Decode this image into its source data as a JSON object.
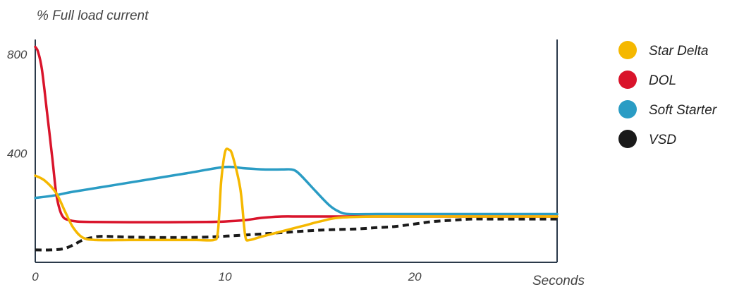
{
  "chart_data": {
    "type": "line",
    "title": "",
    "ylabel": "% Full load current",
    "xlabel": "Seconds",
    "xlim": [
      0,
      27.5
    ],
    "ylim": [
      0,
      900
    ],
    "x_ticks": [
      0,
      10,
      20
    ],
    "y_ticks": [
      400,
      800
    ],
    "grid": false,
    "legend_placement": "right",
    "colors": {
      "star_delta": "#f5b800",
      "dol": "#d9142b",
      "soft_starter": "#2a9cc4",
      "vsd": "#1a1a1a",
      "axis": "#2b3a4a"
    },
    "series": [
      {
        "name": "Star Delta",
        "key": "star_delta",
        "style": "solid",
        "x": [
          0,
          0.5,
          1.1,
          1.6,
          2.0,
          2.5,
          3.2,
          5,
          7,
          8.5,
          9.4,
          9.6,
          9.7,
          9.8,
          10.0,
          10.2,
          10.4,
          10.8,
          11.0,
          11.1,
          11.3,
          12,
          14,
          15,
          16,
          18,
          20,
          22,
          24,
          26,
          27.5
        ],
        "y": [
          350,
          330,
          280,
          200,
          140,
          100,
          90,
          90,
          90,
          90,
          90,
          110,
          200,
          330,
          445,
          455,
          430,
          300,
          150,
          95,
          90,
          105,
          145,
          165,
          180,
          185,
          185,
          185,
          185,
          185,
          185
        ]
      },
      {
        "name": "DOL",
        "key": "dol",
        "style": "solid",
        "x": [
          0,
          0.15,
          0.35,
          0.6,
          0.9,
          1.1,
          1.3,
          1.5,
          1.8,
          2.2,
          3,
          5,
          7,
          9,
          10,
          11,
          12,
          13,
          14,
          16,
          18,
          20,
          22,
          24,
          26,
          27.5
        ],
        "y": [
          870,
          850,
          780,
          620,
          420,
          280,
          210,
          180,
          170,
          165,
          163,
          162,
          162,
          163,
          165,
          170,
          180,
          185,
          185,
          185,
          185,
          185,
          185,
          185,
          185,
          185
        ]
      },
      {
        "name": "Soft Starter",
        "key": "soft_starter",
        "style": "solid",
        "x": [
          0,
          1,
          2,
          4,
          6,
          8,
          10,
          11,
          12,
          13,
          13.5,
          13.8,
          14.2,
          14.8,
          15.5,
          16,
          16.5,
          18,
          20,
          22,
          24,
          26,
          27.5
        ],
        "y": [
          260,
          270,
          285,
          310,
          335,
          360,
          385,
          380,
          375,
          375,
          375,
          365,
          335,
          285,
          230,
          205,
          195,
          195,
          195,
          195,
          195,
          195,
          195
        ]
      },
      {
        "name": "VSD",
        "key": "vsd",
        "style": "dashed",
        "x": [
          0,
          0.8,
          1.5,
          2.0,
          2.5,
          3.0,
          3.5,
          5,
          7,
          9,
          11,
          13,
          15,
          17,
          18,
          19,
          20,
          21,
          22,
          23,
          24,
          25,
          26,
          27.5
        ],
        "y": [
          50,
          50,
          55,
          70,
          90,
          100,
          105,
          102,
          100,
          102,
          110,
          120,
          130,
          135,
          140,
          145,
          155,
          165,
          170,
          175,
          175,
          175,
          175,
          175
        ]
      }
    ]
  }
}
